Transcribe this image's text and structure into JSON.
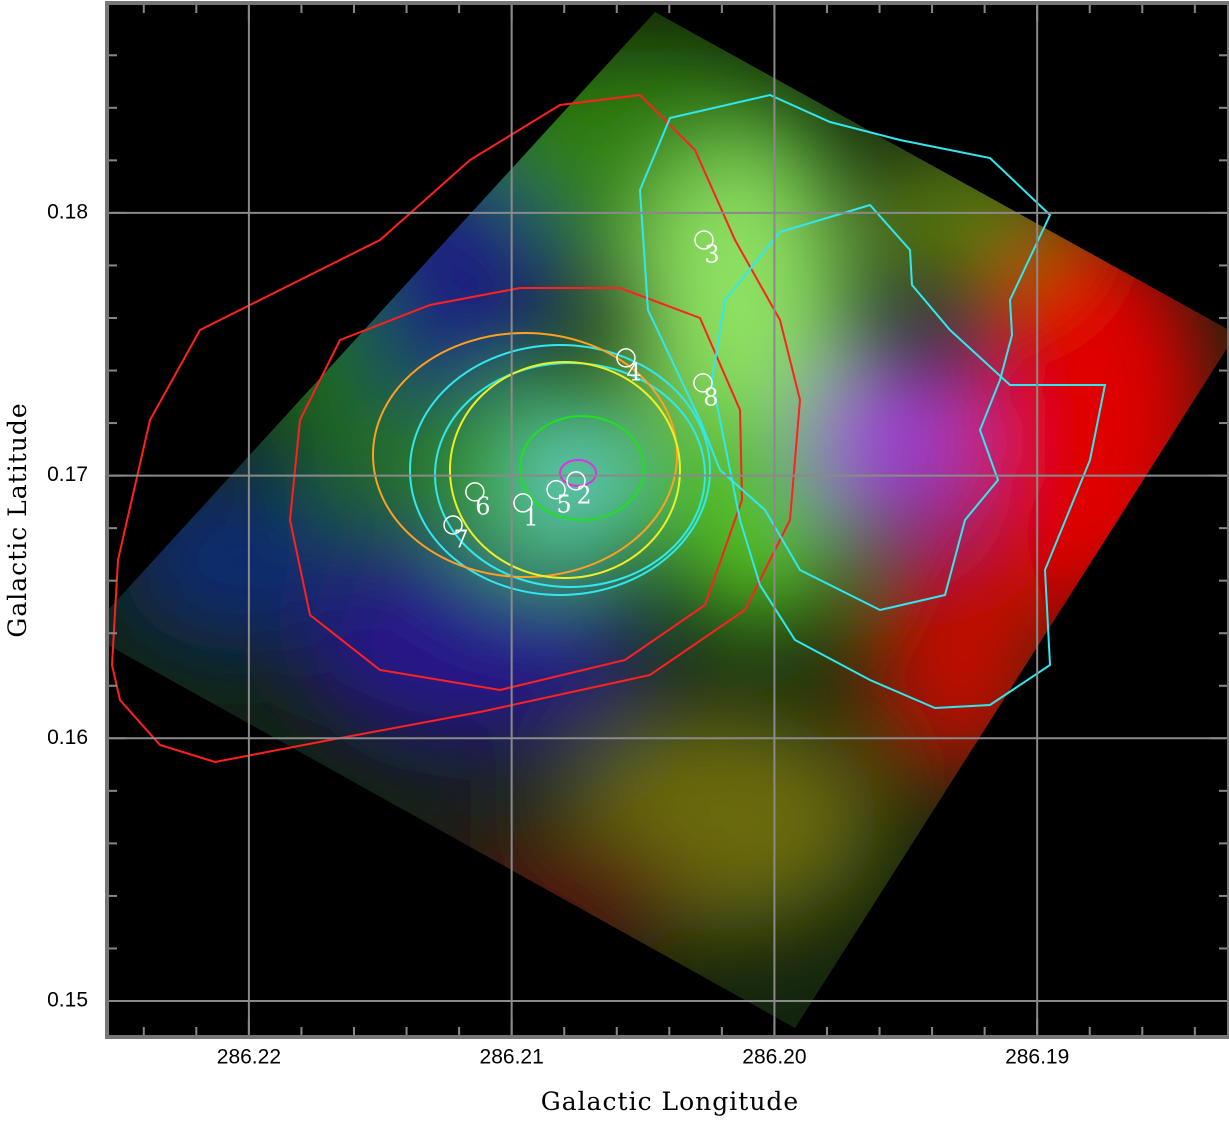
{
  "chart_data": {
    "type": "scatter",
    "x_label": "Galactic Longitude",
    "y_label": "Galactic Latitude",
    "xlim": [
      286.2254,
      286.1827
    ],
    "ylim": [
      0.14863,
      0.18799
    ],
    "xticks": [
      286.22,
      286.21,
      {
        "value": 286.2,
        "label": "286.20"
      },
      286.19
    ],
    "yticks": [
      0.15,
      0.16,
      0.17,
      0.18
    ],
    "grid": true,
    "color": "#ffffff",
    "labels": [
      "1",
      "2",
      "3",
      "4",
      "5",
      "6",
      "7",
      "8"
    ],
    "x": [
      286.20957,
      286.20755,
      286.20268,
      286.20565,
      286.20831,
      286.2114,
      286.21223,
      286.20272
    ],
    "values": [
      0.16896,
      0.1698,
      0.17897,
      0.17448,
      0.16946,
      0.16938,
      0.16812,
      0.17353
    ]
  }
}
